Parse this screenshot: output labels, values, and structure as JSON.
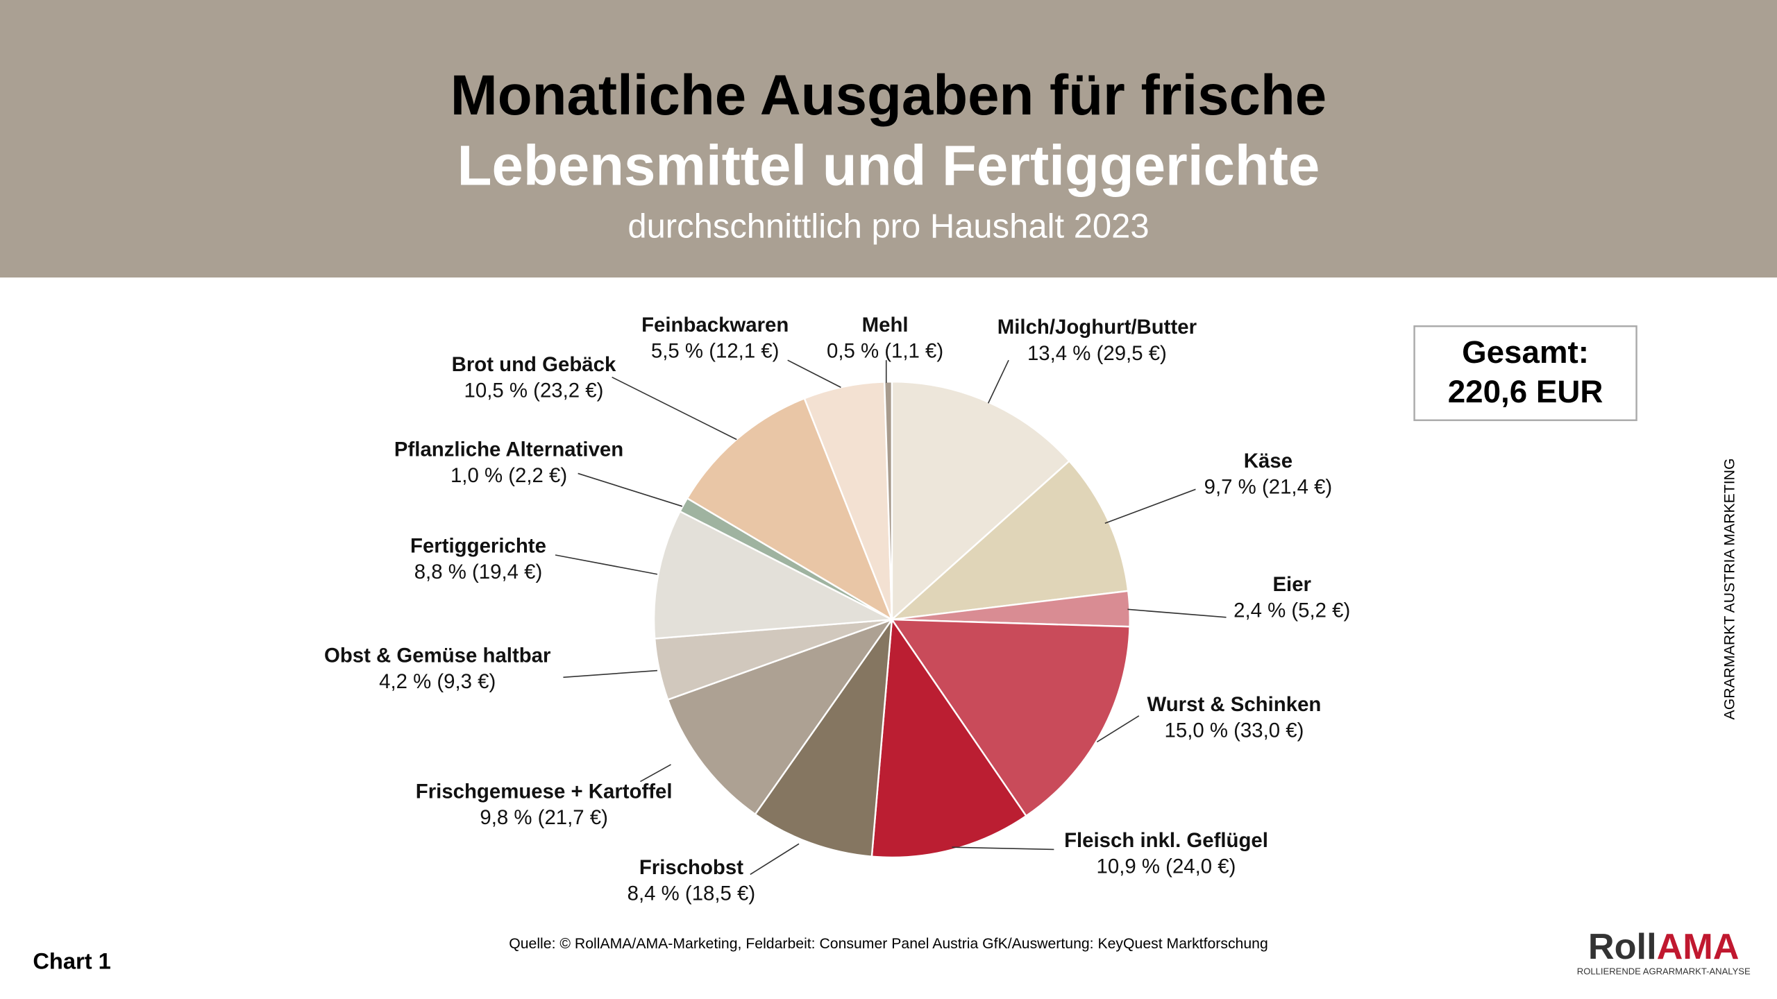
{
  "chart_data": {
    "type": "pie",
    "title": [
      "Monatliche Ausgaben für frische",
      "Lebensmittel und Fertiggerichte"
    ],
    "subtitle": "durchschnittlich pro Haushalt 2023",
    "categories": [
      "Milch/Joghurt/Butter",
      "Käse",
      "Eier",
      "Wurst & Schinken",
      "Fleisch inkl. Geflügel",
      "Frischobst",
      "Frischgemuese + Kartoffel",
      "Obst & Gemüse haltbar",
      "Fertiggerichte",
      "Pflanzliche Alternativen",
      "Brot und Gebäck",
      "Feinbackwaren",
      "Mehl"
    ],
    "values": [
      13.4,
      9.7,
      2.4,
      15.0,
      10.9,
      8.4,
      9.8,
      4.2,
      8.8,
      1.0,
      10.5,
      5.5,
      0.5
    ],
    "value_labels": [
      "13,4 % (29,5 €)",
      "9,7 % (21,4 €)",
      "2,4 % (5,2 €)",
      "15,0 % (33,0 €)",
      "10,9 % (24,0 €)",
      "8,4 % (18,5 €)",
      "9,8 % (21,7 €)",
      "4,2 % (9,3 €)",
      "8,8 % (19,4 €)",
      "1,0 % (2,2 €)",
      "10,5 % (23,2 €)",
      "5,5 % (12,1 €)",
      "0,5 % (1,1 €)"
    ],
    "colors": [
      "#ede6da",
      "#e0d5b8",
      "#d98c93",
      "#c94b5a",
      "#bb1e32",
      "#857661",
      "#ada193",
      "#d1c8bd",
      "#e3e0d9",
      "#9fb3a0",
      "#e9c6a6",
      "#f3e1d2",
      "#a89b8d"
    ],
    "total_box": [
      "Gesamt:",
      "220,6 EUR"
    ],
    "side_note": "AGRARMARKT AUSTRIA MARKETING",
    "chart_label": "Chart 1",
    "source": "Quelle: © RollAMA/AMA-Marketing, Feldarbeit: Consumer Panel Austria GfK/Auswertung: KeyQuest Marktforschung",
    "logo": [
      "Roll",
      "AMA"
    ],
    "logo_subtitle": "ROLLIERENDE AGRARMARKT-ANALYSE"
  }
}
